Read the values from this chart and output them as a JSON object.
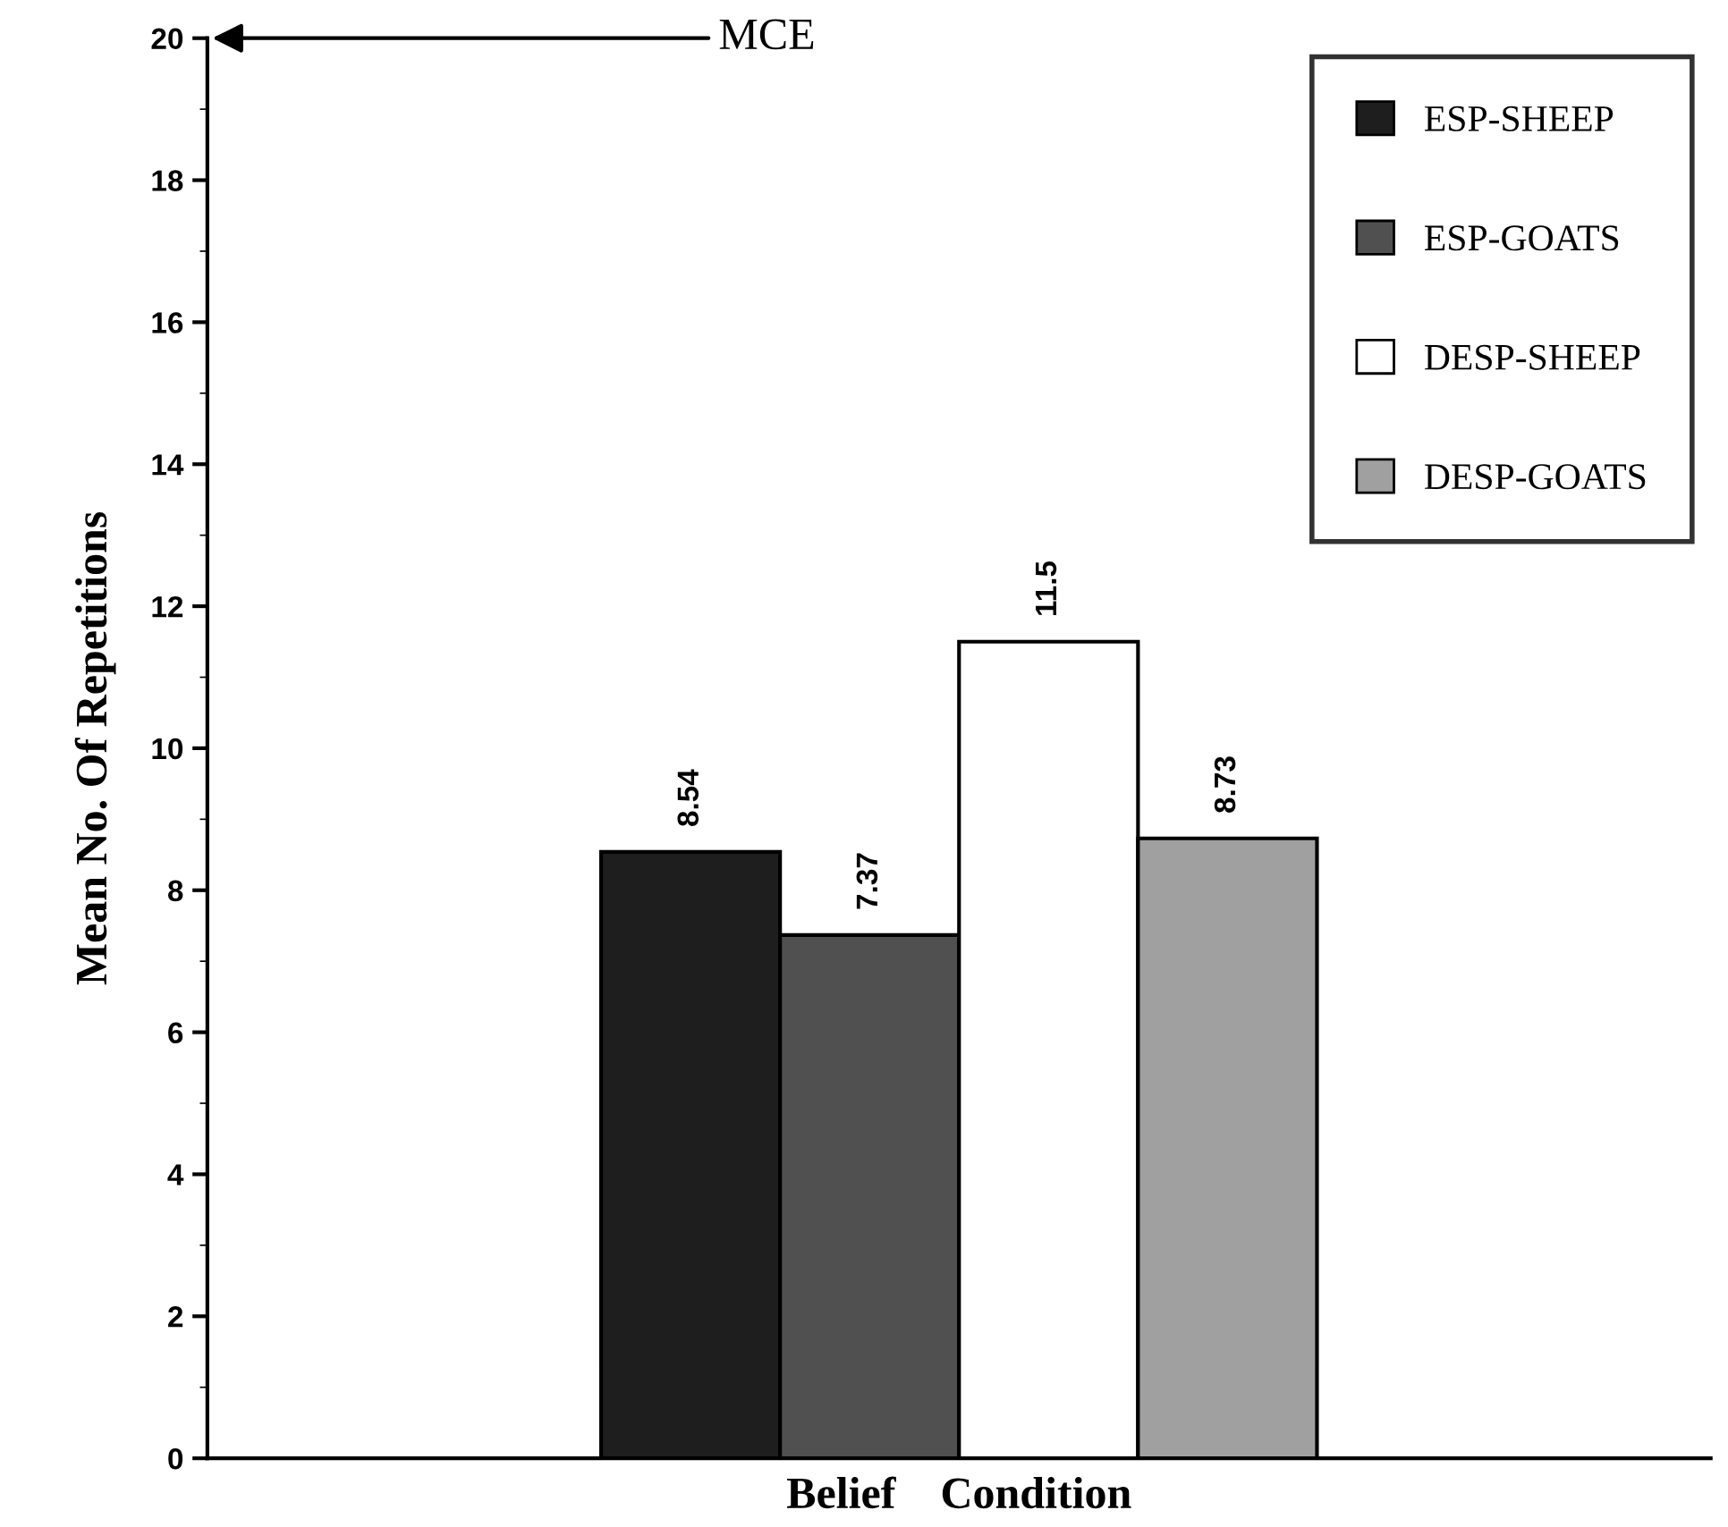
{
  "chart_data": {
    "type": "bar",
    "xlabel": "Belief    Condition",
    "ylabel": "Mean No. Of Repetitions",
    "categories": [
      null
    ],
    "series": [
      {
        "name": "ESP-SHEEP",
        "color": "#1e1e1e",
        "values": [
          8.54
        ]
      },
      {
        "name": "ESP-GOATS",
        "color": "#505050",
        "values": [
          7.37
        ]
      },
      {
        "name": "DESP-SHEEP",
        "color": "#ffffff",
        "values": [
          11.5
        ]
      },
      {
        "name": "DESP-GOATS",
        "color": "#a0a0a0",
        "values": [
          8.73
        ]
      }
    ],
    "ylim": [
      0,
      20
    ],
    "yticks": [
      0,
      2,
      4,
      6,
      8,
      10,
      12,
      14,
      16,
      18,
      20
    ],
    "data_labels": true,
    "grid": false,
    "legend": "top right",
    "annotations": [
      "MCE"
    ]
  }
}
